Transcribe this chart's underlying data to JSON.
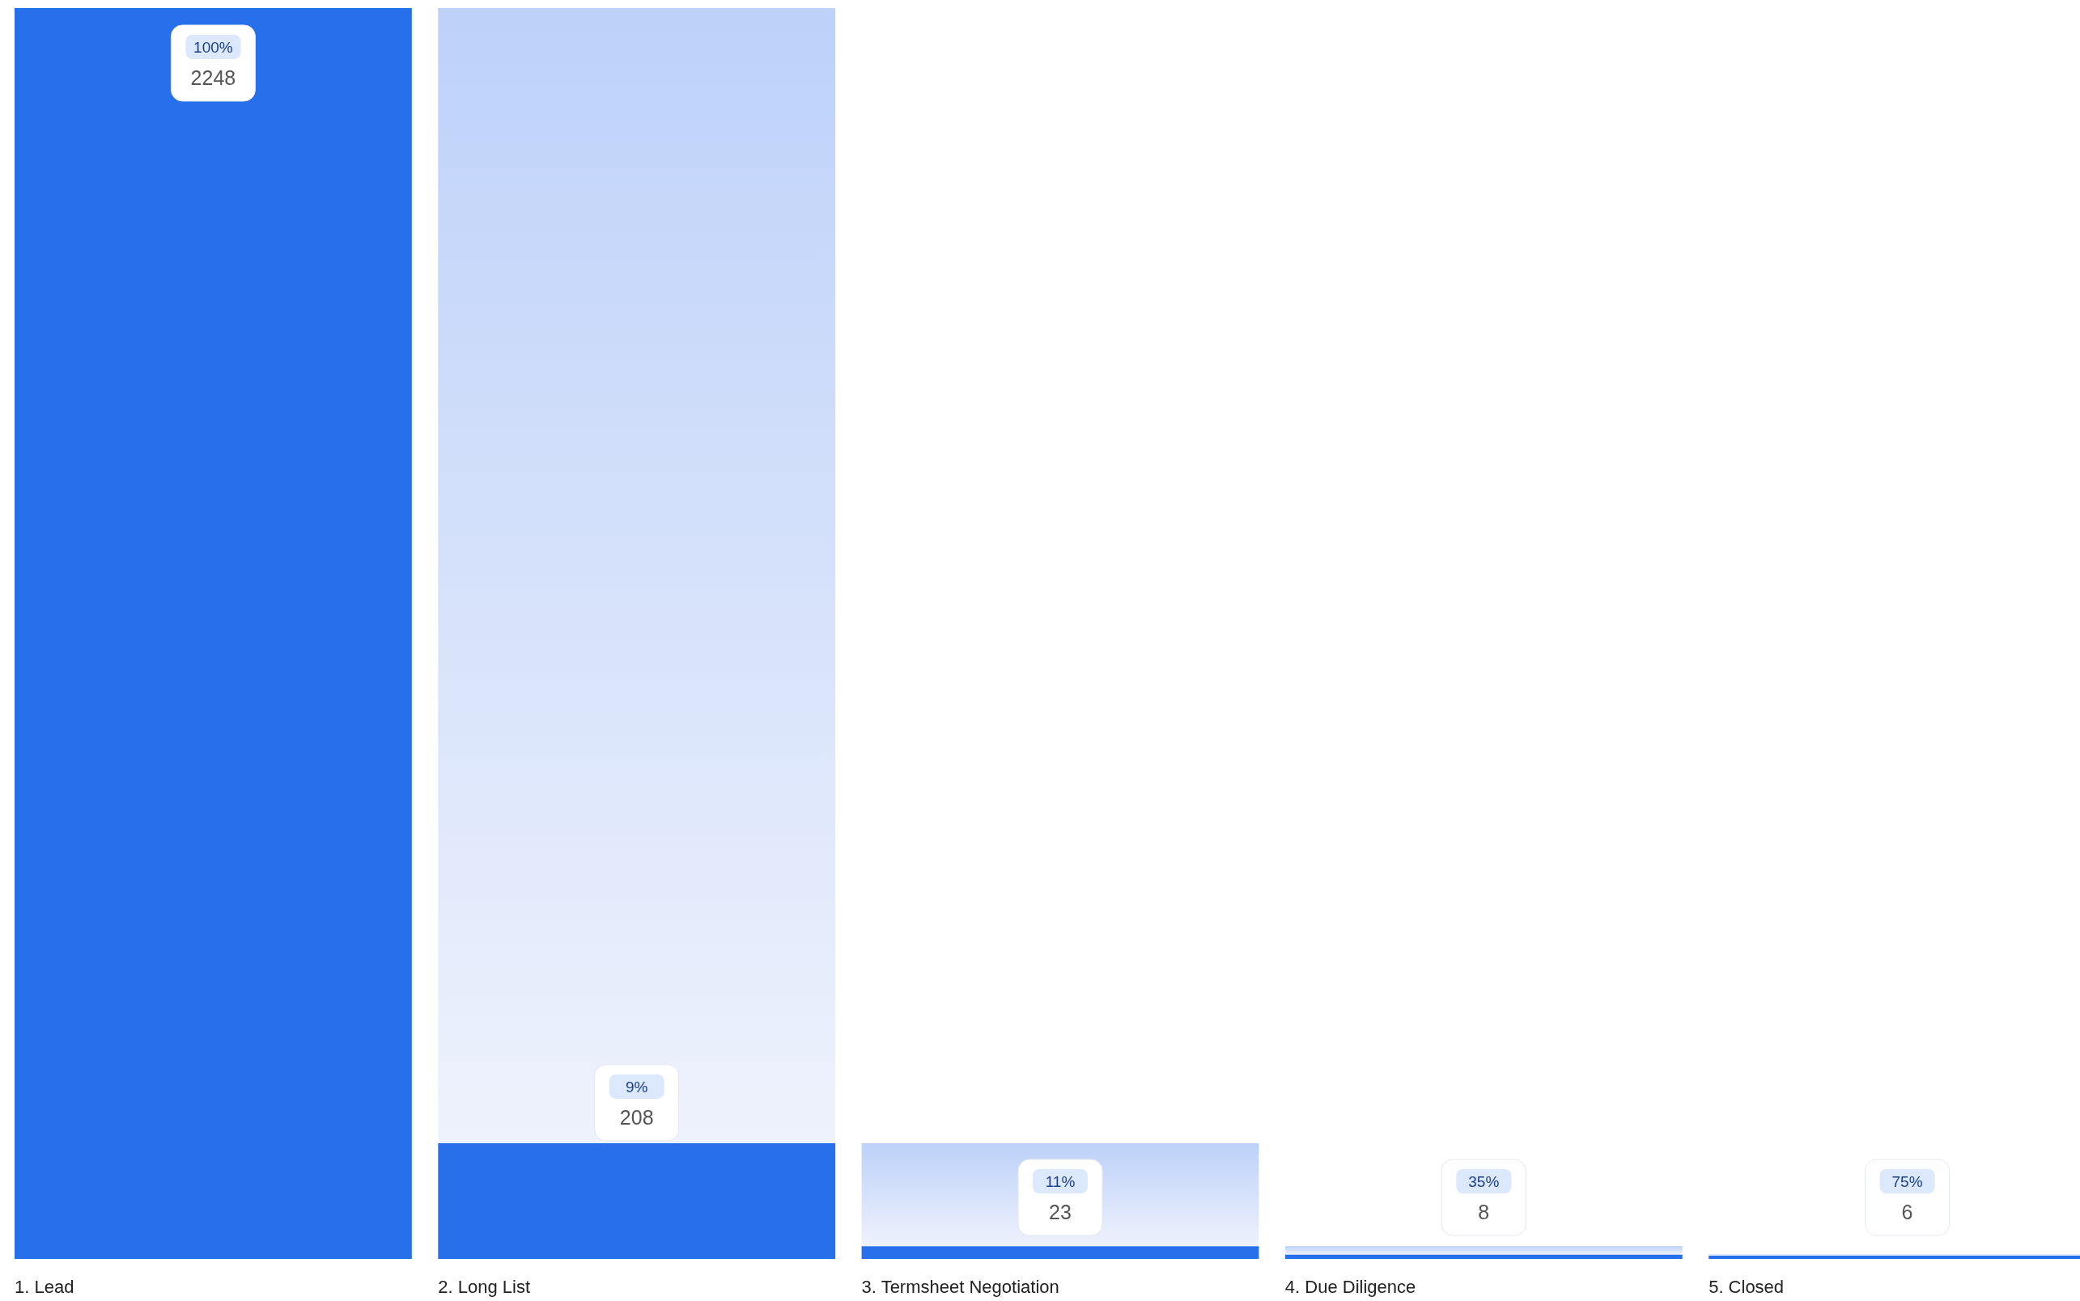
{
  "chart_data": {
    "type": "bar",
    "stacked": true,
    "categories": [
      "1. Lead",
      "2. Long List",
      "3. Termsheet Negotiation",
      "4. Due Diligence",
      "5. Closed"
    ],
    "series": [
      {
        "color": "#2870eb",
        "values": [
          2248,
          208,
          23,
          8,
          6
        ],
        "value_labels": [
          "2248",
          "208",
          "23",
          "8",
          "6"
        ]
      },
      {
        "color": "#bdd1f9",
        "values": [
          null,
          2040,
          185,
          15,
          2
        ]
      }
    ],
    "annotations": [
      "100%",
      "9%",
      "11%",
      "35%",
      "75%"
    ]
  }
}
